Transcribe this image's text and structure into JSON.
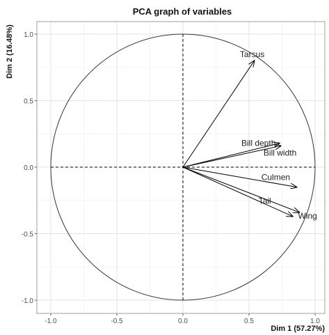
{
  "chart_data": {
    "type": "scatter",
    "title": "PCA graph of variables",
    "xlabel": "Dim 1 (57.27%)",
    "ylabel": "Dim 2 (16.48%)",
    "xlim": [
      -1.1,
      1.1
    ],
    "ylim": [
      -1.1,
      1.1
    ],
    "x_ticks": [
      "-1.0",
      "-0.5",
      "0.0",
      "0.5",
      "1.0"
    ],
    "y_ticks": [
      "-1.0",
      "-0.5",
      "0.0",
      "0.5",
      "1.0"
    ],
    "x_tick_values": [
      -1.0,
      -0.5,
      0.0,
      0.5,
      1.0
    ],
    "y_tick_values": [
      -1.0,
      -0.5,
      0.0,
      0.5,
      1.0
    ],
    "grid": true,
    "unit_circle": true,
    "vectors": [
      {
        "name": "Tarsus",
        "x": 0.54,
        "y": 0.8
      },
      {
        "name": "Bill depth",
        "x": 0.73,
        "y": 0.18
      },
      {
        "name": "Bill width",
        "x": 0.74,
        "y": 0.16
      },
      {
        "name": "Culmen",
        "x": 0.86,
        "y": -0.15
      },
      {
        "name": "Wing",
        "x": 0.88,
        "y": -0.34
      },
      {
        "name": "Tail",
        "x": 0.83,
        "y": -0.37
      }
    ],
    "colors": {
      "vector": "#000000",
      "grid": "#e6e6e6",
      "frame": "#a0a0a0",
      "circle": "#333333"
    }
  }
}
